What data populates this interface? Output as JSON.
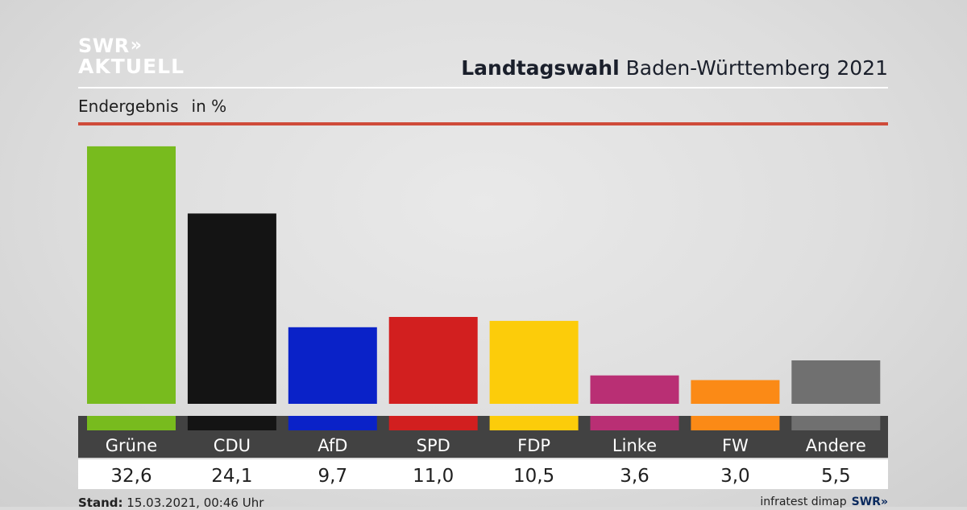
{
  "brand": {
    "line1": "SWR",
    "line2": "AKTUELL",
    "chevron": "»",
    "footer_logo": "SWR»"
  },
  "header": {
    "title_bold": "Landtagswahl",
    "title_rest": " Baden-Württemberg 2021"
  },
  "subheader": {
    "label": "Endergebnis",
    "unit": "in %"
  },
  "footer": {
    "stand_label": "Stand:",
    "stand_value": "15.03.2021, 00:46 Uhr",
    "source": "infratest dimap"
  },
  "colors": {
    "accent_red": "#cf4b3a",
    "label_band": "#424242"
  },
  "chart_data": {
    "type": "bar",
    "title": "Landtagswahl Baden-Württemberg 2021",
    "subtitle": "Endergebnis in %",
    "categories": [
      "Grüne",
      "CDU",
      "AfD",
      "SPD",
      "FDP",
      "Linke",
      "FW",
      "Andere"
    ],
    "values": [
      32.6,
      24.1,
      9.7,
      11.0,
      10.5,
      3.6,
      3.0,
      5.5
    ],
    "value_labels": [
      "32,6",
      "24,1",
      "9,7",
      "11,0",
      "10,5",
      "3,6",
      "3,0",
      "5,5"
    ],
    "colors": [
      "#78bb1e",
      "#141414",
      "#0a22c8",
      "#d21f1f",
      "#fccc0a",
      "#b92f74",
      "#fb8a16",
      "#707070"
    ],
    "ylim": [
      0,
      33
    ],
    "grid": false,
    "legend": "none"
  }
}
